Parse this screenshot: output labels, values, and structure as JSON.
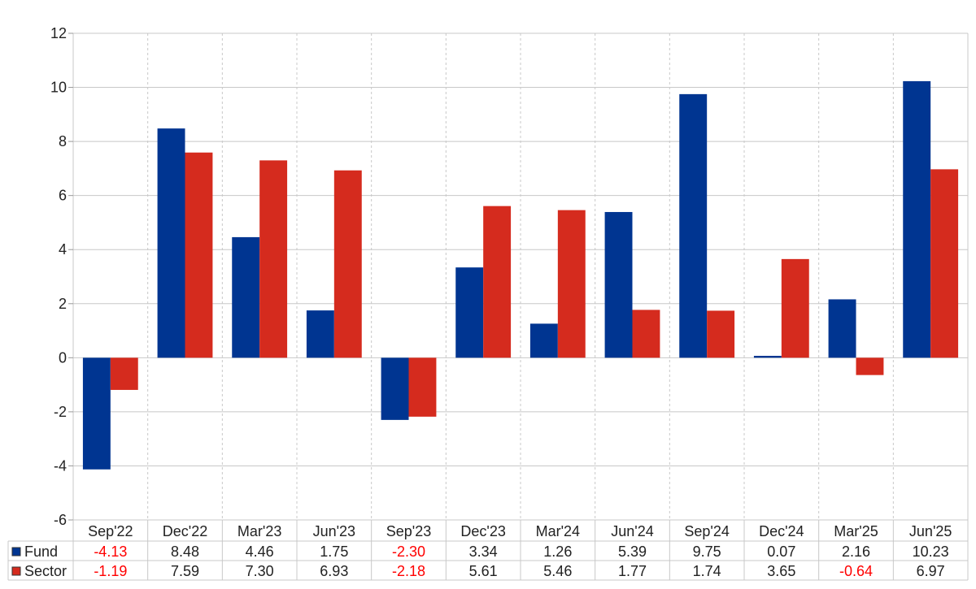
{
  "chart_data": {
    "type": "bar",
    "categories": [
      "Sep'22",
      "Dec'22",
      "Mar'23",
      "Jun'23",
      "Sep'23",
      "Dec'23",
      "Mar'24",
      "Jun'24",
      "Sep'24",
      "Dec'24",
      "Mar'25",
      "Jun'25"
    ],
    "series": [
      {
        "name": "Fund",
        "color": "#003591",
        "values": [
          -4.13,
          8.48,
          4.46,
          1.75,
          -2.3,
          3.34,
          1.26,
          5.39,
          9.75,
          0.07,
          2.16,
          10.23
        ],
        "labels": [
          "-4.13",
          "8.48",
          "4.46",
          "1.75",
          "-2.30",
          "3.34",
          "1.26",
          "5.39",
          "9.75",
          "0.07",
          "2.16",
          "10.23"
        ]
      },
      {
        "name": "Sector",
        "color": "#d52b1e",
        "values": [
          -1.19,
          7.59,
          7.3,
          6.93,
          -2.18,
          5.61,
          5.46,
          1.77,
          1.74,
          3.65,
          -0.64,
          6.97
        ],
        "labels": [
          "-1.19",
          "7.59",
          "7.30",
          "6.93",
          "-2.18",
          "5.61",
          "5.46",
          "1.77",
          "1.74",
          "3.65",
          "-0.64",
          "6.97"
        ]
      }
    ],
    "ylim": [
      -6,
      12
    ],
    "yticks": [
      "12",
      "10",
      "8",
      "6",
      "4",
      "2",
      "0",
      "-2",
      "-4",
      "-6"
    ],
    "negative_color": "#ff0000",
    "grid": true,
    "legend": "data-table-left"
  }
}
